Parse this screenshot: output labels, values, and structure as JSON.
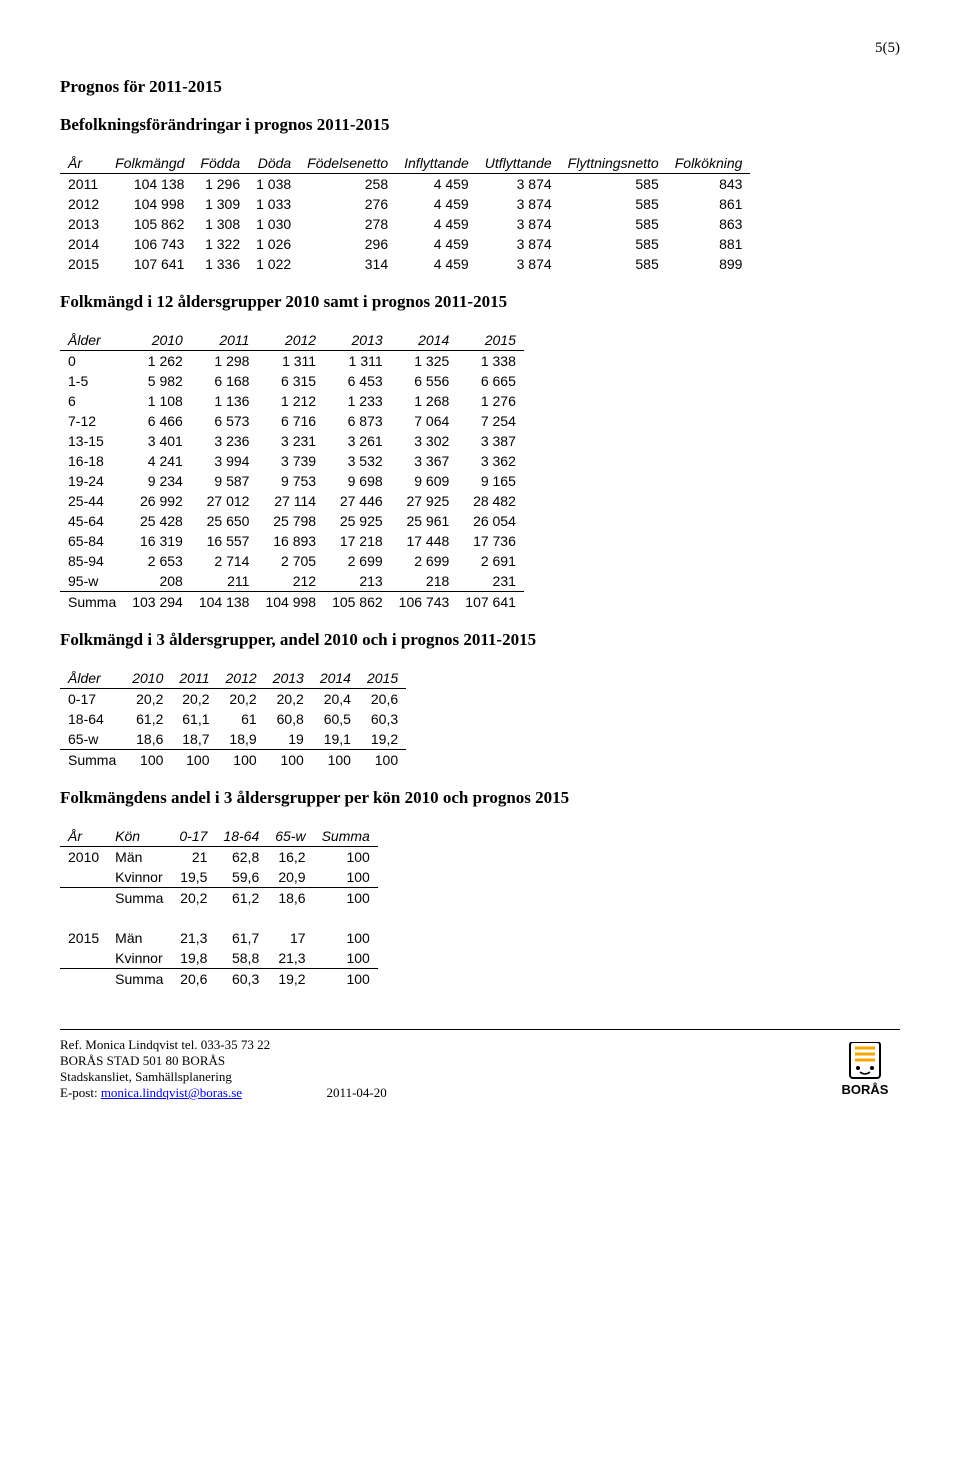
{
  "page_number": "5(5)",
  "sections": {
    "s1": "Prognos för 2011-2015",
    "s2": "Befolkningsförändringar i prognos 2011-2015",
    "s3": "Folkmängd i 12 åldersgrupper 2010 samt i prognos 2011-2015",
    "s4": "Folkmängd i 3 åldersgrupper, andel 2010 och i prognos 2011-2015",
    "s5": "Folkmängdens andel i 3 åldersgrupper per kön 2010 och prognos 2015"
  },
  "t1": {
    "headers": [
      "År",
      "Folkmängd",
      "Födda",
      "Döda",
      "Födelsenetto",
      "Inflyttande",
      "Utflyttande",
      "Flyttningsnetto",
      "Folkökning"
    ],
    "rows": [
      [
        "2011",
        "104 138",
        "1 296",
        "1 038",
        "258",
        "4 459",
        "3 874",
        "585",
        "843"
      ],
      [
        "2012",
        "104 998",
        "1 309",
        "1 033",
        "276",
        "4 459",
        "3 874",
        "585",
        "861"
      ],
      [
        "2013",
        "105 862",
        "1 308",
        "1 030",
        "278",
        "4 459",
        "3 874",
        "585",
        "863"
      ],
      [
        "2014",
        "106 743",
        "1 322",
        "1 026",
        "296",
        "4 459",
        "3 874",
        "585",
        "881"
      ],
      [
        "2015",
        "107 641",
        "1 336",
        "1 022",
        "314",
        "4 459",
        "3 874",
        "585",
        "899"
      ]
    ]
  },
  "t2": {
    "headers": [
      "Ålder",
      "2010",
      "2011",
      "2012",
      "2013",
      "2014",
      "2015"
    ],
    "rows": [
      [
        "0",
        "1 262",
        "1 298",
        "1 311",
        "1 311",
        "1 325",
        "1 338"
      ],
      [
        "1-5",
        "5 982",
        "6 168",
        "6 315",
        "6 453",
        "6 556",
        "6 665"
      ],
      [
        "6",
        "1 108",
        "1 136",
        "1 212",
        "1 233",
        "1 268",
        "1 276"
      ],
      [
        "7-12",
        "6 466",
        "6 573",
        "6 716",
        "6 873",
        "7 064",
        "7 254"
      ],
      [
        "13-15",
        "3 401",
        "3 236",
        "3 231",
        "3 261",
        "3 302",
        "3 387"
      ],
      [
        "16-18",
        "4 241",
        "3 994",
        "3 739",
        "3 532",
        "3 367",
        "3 362"
      ],
      [
        "19-24",
        "9 234",
        "9 587",
        "9 753",
        "9 698",
        "9 609",
        "9 165"
      ],
      [
        "25-44",
        "26 992",
        "27 012",
        "27 114",
        "27 446",
        "27 925",
        "28 482"
      ],
      [
        "45-64",
        "25 428",
        "25 650",
        "25 798",
        "25 925",
        "25 961",
        "26 054"
      ],
      [
        "65-84",
        "16 319",
        "16 557",
        "16 893",
        "17 218",
        "17 448",
        "17 736"
      ],
      [
        "85-94",
        "2 653",
        "2 714",
        "2 705",
        "2 699",
        "2 699",
        "2 691"
      ],
      [
        "95-w",
        "208",
        "211",
        "212",
        "213",
        "218",
        "231"
      ]
    ],
    "sum": [
      "Summa",
      "103 294",
      "104 138",
      "104 998",
      "105 862",
      "106 743",
      "107 641"
    ]
  },
  "t3": {
    "headers": [
      "Ålder",
      "2010",
      "2011",
      "2012",
      "2013",
      "2014",
      "2015"
    ],
    "rows": [
      [
        "0-17",
        "20,2",
        "20,2",
        "20,2",
        "20,2",
        "20,4",
        "20,6"
      ],
      [
        "18-64",
        "61,2",
        "61,1",
        "61",
        "60,8",
        "60,5",
        "60,3"
      ],
      [
        "65-w",
        "18,6",
        "18,7",
        "18,9",
        "19",
        "19,1",
        "19,2"
      ]
    ],
    "sum": [
      "Summa",
      "100",
      "100",
      "100",
      "100",
      "100",
      "100"
    ]
  },
  "t4": {
    "headers": [
      "År",
      "Kön",
      "0-17",
      "18-64",
      "65-w",
      "Summa"
    ],
    "blocks": [
      {
        "year": "2010",
        "rows": [
          [
            "Män",
            "21",
            "62,8",
            "16,2",
            "100"
          ],
          [
            "Kvinnor",
            "19,5",
            "59,6",
            "20,9",
            "100"
          ],
          [
            "Summa",
            "20,2",
            "61,2",
            "18,6",
            "100"
          ]
        ]
      },
      {
        "year": "2015",
        "rows": [
          [
            "Män",
            "21,3",
            "61,7",
            "17",
            "100"
          ],
          [
            "Kvinnor",
            "19,8",
            "58,8",
            "21,3",
            "100"
          ],
          [
            "Summa",
            "20,6",
            "60,3",
            "19,2",
            "100"
          ]
        ]
      }
    ]
  },
  "footer": {
    "line1": "Ref. Monica Lindqvist tel. 033-35 73 22",
    "line2": "BORÅS STAD 501 80 BORÅS",
    "line3": "Stadskansliet, Samhällsplanering",
    "epost_label": "E-post: ",
    "epost_link": "monica.lindqvist@boras.se",
    "date": "2011-04-20",
    "logo_text": "BORÅS",
    "logo_colors": {
      "bg": "#fff",
      "accent": "#f7a600",
      "black": "#000"
    }
  }
}
